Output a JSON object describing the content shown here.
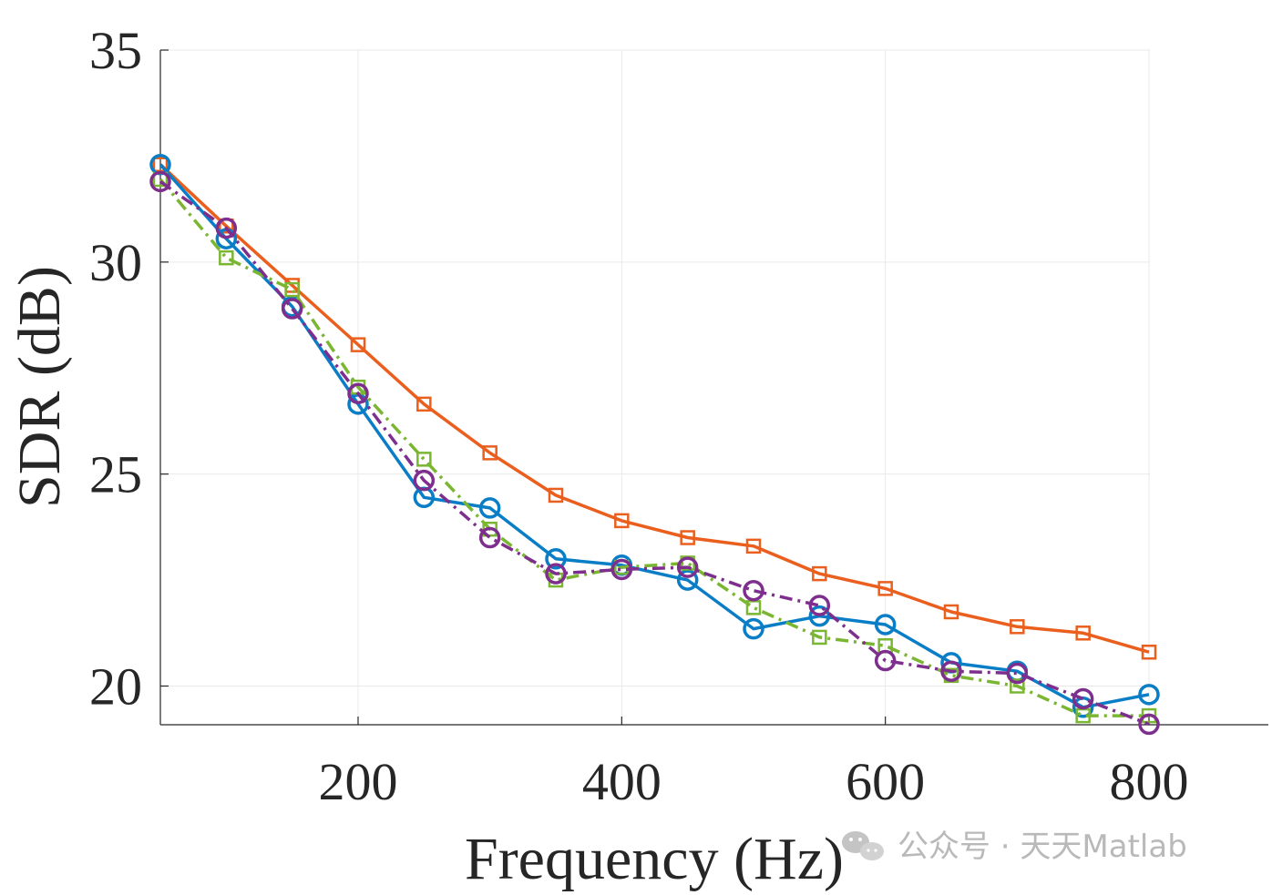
{
  "chart_data": {
    "type": "line",
    "title": "",
    "xlabel": "Frequency (Hz)",
    "ylabel": "SDR (dB)",
    "xlim": [
      50,
      800
    ],
    "ylim": [
      19.1,
      35
    ],
    "xticks": [
      200,
      400,
      600,
      800
    ],
    "yticks": [
      20,
      25,
      30,
      35
    ],
    "grid": true,
    "x": [
      50,
      100,
      150,
      200,
      250,
      300,
      350,
      400,
      450,
      500,
      550,
      600,
      650,
      700,
      750,
      800
    ],
    "series": [
      {
        "color": "#EA5F1E",
        "marker": "square",
        "line": "solid",
        "values": [
          32.3,
          30.85,
          29.45,
          28.05,
          26.65,
          25.5,
          24.5,
          23.9,
          23.5,
          23.3,
          22.65,
          22.3,
          21.75,
          21.4,
          21.25,
          20.8
        ]
      },
      {
        "color": "#0A7DC7",
        "marker": "circle",
        "line": "solid",
        "values": [
          32.3,
          30.55,
          28.95,
          26.65,
          24.45,
          24.2,
          23.0,
          22.85,
          22.5,
          21.35,
          21.65,
          21.45,
          20.55,
          20.35,
          19.5,
          19.8
        ]
      },
      {
        "color": "#7BB632",
        "marker": "square",
        "line": "dashdot",
        "values": [
          31.95,
          30.1,
          29.35,
          27.05,
          25.35,
          23.7,
          22.5,
          22.8,
          22.9,
          21.85,
          21.15,
          20.95,
          20.25,
          20.0,
          19.3,
          19.3
        ]
      },
      {
        "color": "#7E2F8E",
        "marker": "circle",
        "line": "dashdot",
        "values": [
          31.9,
          30.8,
          28.9,
          26.9,
          24.85,
          23.5,
          22.65,
          22.75,
          22.8,
          22.25,
          21.9,
          20.6,
          20.35,
          20.3,
          19.7,
          19.1
        ]
      }
    ]
  },
  "watermark": {
    "icon": "wechat-icon",
    "text": "公众号 · 天天Matlab"
  }
}
